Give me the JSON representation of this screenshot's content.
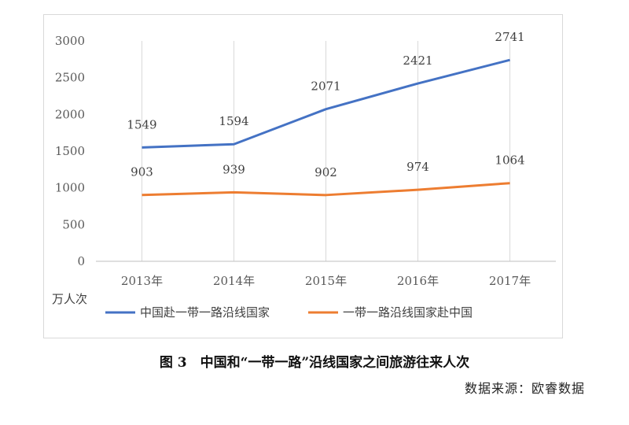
{
  "chart_data": {
    "type": "line",
    "categories": [
      "2013年",
      "2014年",
      "2015年",
      "2016年",
      "2017年"
    ],
    "series": [
      {
        "name": "中国赴一带一路沿线国家",
        "values": [
          1549,
          1594,
          2071,
          2421,
          2741
        ],
        "color": "#4472C4"
      },
      {
        "name": "一带一路沿线国家赴中国",
        "values": [
          903,
          939,
          902,
          974,
          1064
        ],
        "color": "#ED7D31"
      }
    ],
    "ylim": [
      0,
      3000
    ],
    "yticks": [
      0,
      500,
      1000,
      1500,
      2000,
      2500,
      3000
    ],
    "unit_label": "万人次",
    "grid": "vertical",
    "legend": "bottom"
  },
  "caption": "图 3　中国和“一带一路”沿线国家之间旅游往来人次",
  "source": "数据来源：欧睿数据"
}
